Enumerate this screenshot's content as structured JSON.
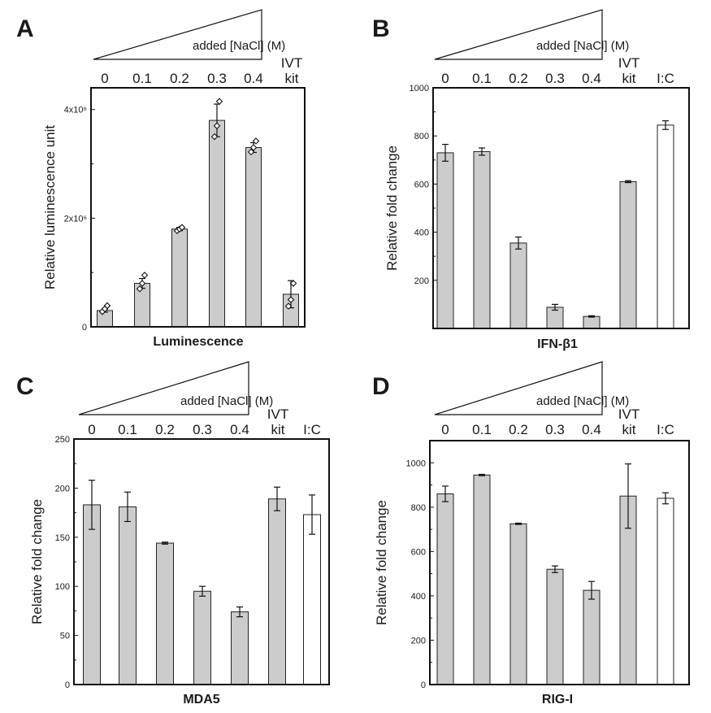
{
  "chart_data": [
    {
      "panel": "A",
      "type": "bar",
      "categories": [
        "0",
        "0.1",
        "0.2",
        "0.3",
        "0.4",
        "IVT kit"
      ],
      "category_labels": [
        "0",
        "0.1",
        "0.2",
        "0.3",
        "0.4",
        [
          "IVT",
          "kit"
        ]
      ],
      "values": [
        300000,
        800000,
        1800000,
        3800000,
        3300000,
        600000
      ],
      "errors": [
        30000,
        90000,
        30000,
        300000,
        90000,
        250000
      ],
      "points": [
        [
          280000,
          330000,
          390000
        ],
        [
          700000,
          800000,
          950000
        ],
        [
          1770000,
          1800000,
          1830000
        ],
        [
          3500000,
          3700000,
          4150000
        ],
        [
          3220000,
          3300000,
          3420000
        ],
        [
          380000,
          500000,
          800000
        ]
      ],
      "bar_colors": [
        "#cccccc",
        "#cccccc",
        "#cccccc",
        "#cccccc",
        "#cccccc",
        "#cccccc"
      ],
      "ylim": [
        0,
        4400000
      ],
      "yticks": [
        0,
        2000000,
        4000000
      ],
      "ytick_labels": [
        "0",
        "2x10⁶",
        "4x10⁶"
      ],
      "ylabel": "Relative luminescence unit",
      "xlabel": "Luminescence",
      "wedge_label": "added [NaCl] (M)"
    },
    {
      "panel": "B",
      "type": "bar",
      "categories": [
        "0",
        "0.1",
        "0.2",
        "0.3",
        "0.4",
        "IVT kit",
        "I:C"
      ],
      "category_labels": [
        "0",
        "0.1",
        "0.2",
        "0.3",
        "0.4",
        [
          "IVT",
          "kit"
        ],
        "I:C"
      ],
      "values": [
        730,
        735,
        355,
        88,
        50,
        610,
        845
      ],
      "errors": [
        35,
        15,
        25,
        12,
        3,
        4,
        18
      ],
      "bar_colors": [
        "#cccccc",
        "#cccccc",
        "#cccccc",
        "#cccccc",
        "#cccccc",
        "#cccccc",
        "#ffffff"
      ],
      "ylim": [
        0,
        1000
      ],
      "yticks": [
        200,
        400,
        600,
        800,
        1000
      ],
      "ytick_labels": [
        "200",
        "400",
        "600",
        "800",
        "1000"
      ],
      "ylabel": "Relative fold change",
      "xlabel": "IFN-β1",
      "wedge_label": "added [NaCl] (M)"
    },
    {
      "panel": "C",
      "type": "bar",
      "categories": [
        "0",
        "0.1",
        "0.2",
        "0.3",
        "0.4",
        "IVT kit",
        "I:C"
      ],
      "category_labels": [
        "0",
        "0.1",
        "0.2",
        "0.3",
        "0.4",
        [
          "IVT",
          "kit"
        ],
        "I:C"
      ],
      "values": [
        183,
        181,
        144,
        95,
        74,
        189,
        173
      ],
      "errors": [
        25,
        15,
        1,
        5,
        5,
        12,
        20
      ],
      "bar_colors": [
        "#cccccc",
        "#cccccc",
        "#cccccc",
        "#cccccc",
        "#cccccc",
        "#cccccc",
        "#ffffff"
      ],
      "ylim": [
        0,
        250
      ],
      "yticks": [
        0,
        50,
        100,
        150,
        200,
        250
      ],
      "ytick_labels": [
        "0",
        "50",
        "100",
        "150",
        "200",
        "250"
      ],
      "ylabel": "Relative fold change",
      "xlabel": "MDA5",
      "wedge_label": "added [NaCl] (M)"
    },
    {
      "panel": "D",
      "type": "bar",
      "categories": [
        "0",
        "0.1",
        "0.2",
        "0.3",
        "0.4",
        "IVT kit",
        "I:C"
      ],
      "category_labels": [
        "0",
        "0.1",
        "0.2",
        "0.3",
        "0.4",
        [
          "IVT",
          "kit"
        ],
        "I:C"
      ],
      "values": [
        860,
        945,
        725,
        520,
        425,
        850,
        840
      ],
      "errors": [
        35,
        3,
        3,
        15,
        40,
        145,
        25
      ],
      "bar_colors": [
        "#cccccc",
        "#cccccc",
        "#cccccc",
        "#cccccc",
        "#cccccc",
        "#cccccc",
        "#ffffff"
      ],
      "ylim": [
        0,
        1100
      ],
      "yticks": [
        0,
        200,
        400,
        600,
        800,
        1000
      ],
      "ytick_labels": [
        "0",
        "200",
        "400",
        "600",
        "800",
        "1000"
      ],
      "ylabel": "Relative fold change",
      "xlabel": "RIG-I",
      "wedge_label": "added [NaCl] (M)"
    }
  ]
}
